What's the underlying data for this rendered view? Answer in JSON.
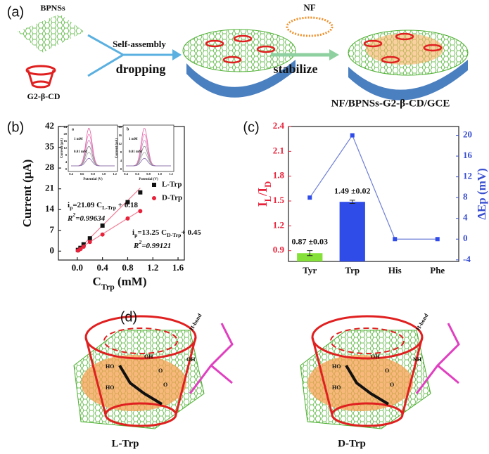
{
  "panel_labels": [
    "(a)",
    "(b)",
    "(c)",
    "(d)"
  ],
  "scheme": {
    "sheet": "BPNSs",
    "cup": "G2-β-CD",
    "step1_top": "Self-assembly",
    "step1_bottom": "dropping",
    "nf": "NF",
    "step2": "stabilize",
    "electrode": "NF/BPNSs-G2-β-CD/GCE"
  },
  "chart_data": [
    {
      "type": "scatter",
      "x_label": [
        "C",
        "Trp",
        " (mM)"
      ],
      "y_label": "Current (μA)",
      "xlim": [
        -0.3,
        1.7
      ],
      "xticks": [
        {
          "value": 0,
          "label": "0.0"
        },
        0.4,
        0.8,
        1.2,
        1.6
      ],
      "ylim": [
        -3,
        42
      ],
      "yticks": [
        0,
        7,
        14,
        21,
        28,
        35,
        42
      ],
      "fit_color": "#f07d95",
      "series": [
        {
          "name": "L-Trp",
          "color": "#111111",
          "marker": "square",
          "x": [
            0.01,
            0.05,
            0.1,
            0.2,
            0.4,
            0.8,
            1.0
          ],
          "values": [
            0.4,
            1.1,
            2.3,
            4.3,
            8.6,
            16.5,
            19.8
          ],
          "fit": {
            "slope": 21.09,
            "intercept": 0.18
          },
          "equation": [
            "i",
            "p",
            "=21.09 C",
            "L-Trp",
            " + 0.18"
          ],
          "r2": [
            "R",
            "2",
            "=0.99634"
          ]
        },
        {
          "name": "D-Trp",
          "color": "#e8223a",
          "marker": "circle",
          "x": [
            0.01,
            0.05,
            0.1,
            0.2,
            0.4,
            0.8,
            1.0
          ],
          "values": [
            0.2,
            0.7,
            1.5,
            3.1,
            5.6,
            11.0,
            13.5
          ],
          "fit": {
            "slope": 13.25,
            "intercept": 0.45
          },
          "equation": [
            "i",
            "p",
            "=13.25 C",
            "D-Trp",
            "+ 0.45"
          ],
          "r2": [
            "R",
            "2",
            "=0.99121"
          ]
        }
      ]
    },
    {
      "type": "bar_line",
      "categories": [
        "Tyr",
        "Trp",
        "His",
        "Phe"
      ],
      "y_label": [
        "I",
        "L",
        "/I",
        "D"
      ],
      "y2_label": "ΔEp (mV)",
      "ylim": [
        0.77,
        2.4
      ],
      "yticks": [
        0.9,
        1.2,
        1.5,
        1.8,
        2.1,
        2.4
      ],
      "y2lim": [
        -4.3,
        21.7
      ],
      "y2ticks": [
        -4,
        0,
        4,
        8,
        12,
        16,
        20
      ],
      "y_label_color": "#e8223a",
      "y2_label_color": "#3a4fd0",
      "series": [
        {
          "values": [
            0.87,
            1.49,
            null,
            null
          ],
          "errors": [
            0.03,
            0.02,
            null,
            null
          ],
          "value_labels": [
            "0.87 ±0.03",
            "1.49 ±0.02",
            null,
            null
          ],
          "colors": [
            "#86e03a",
            "#2f4ce8",
            null,
            null
          ]
        },
        {
          "values": [
            8,
            20,
            0,
            0
          ],
          "color": "#6f7fd8",
          "axis": "y2"
        }
      ]
    }
  ],
  "insets": [
    {
      "tag": "a",
      "y_label": "Current (μA)",
      "x_label": "Potential (V)",
      "high": "1 mM",
      "low": "0.01 mM",
      "yticks": [
        "0",
        "4",
        "8",
        "12",
        "16",
        "20",
        "24"
      ],
      "xticks": [
        "0.4",
        "0.6",
        "0.8",
        "1.0",
        "1.2"
      ]
    },
    {
      "tag": "b",
      "y_label": "Current (μA)",
      "x_label": "Potential (V)",
      "high": "1 mM",
      "low": "0.01 mM",
      "yticks": [
        "0",
        "4",
        "8",
        "12",
        "16",
        "20"
      ],
      "xticks": [
        "0.4",
        "0.6",
        "0.8",
        "1.0",
        "1.2"
      ]
    }
  ],
  "models": [
    {
      "label": "L-Trp",
      "notes": [
        "H-bond",
        "OH",
        "HO",
        "OH",
        "HO",
        "O",
        "O"
      ]
    },
    {
      "label": "D-Trp",
      "notes": [
        "H-bond",
        "OH",
        "HO",
        "NH",
        "HO",
        "O",
        "O"
      ]
    }
  ]
}
